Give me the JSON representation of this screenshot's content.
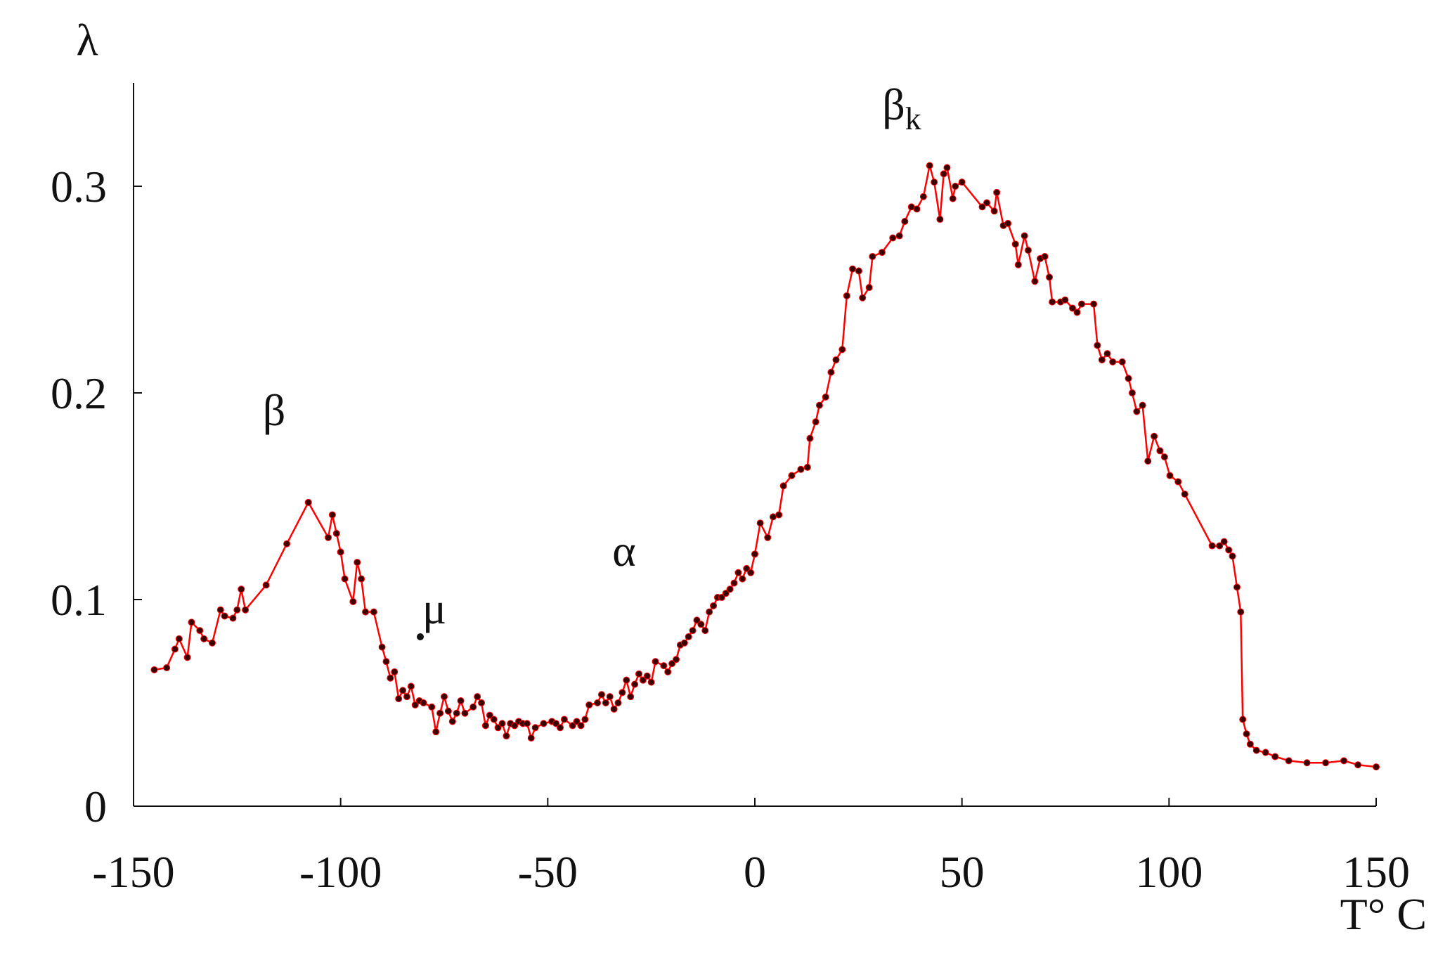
{
  "chart_data": {
    "type": "line",
    "y_label": "λ",
    "x_label": "T° C",
    "annotations": [
      {
        "text": "β"
      },
      {
        "text": "μ"
      },
      {
        "text": "α"
      },
      {
        "text": "β",
        "sub": "k"
      }
    ],
    "color": "#ff0000",
    "marker_color": "#3a0000",
    "xlim": [
      -150,
      150
    ],
    "xticks": [
      -150,
      -100,
      -50,
      0,
      50,
      100,
      150
    ],
    "ylim": [
      0,
      0.35
    ],
    "yticks": [
      0,
      0.1,
      0.2,
      0.3
    ],
    "grid": false,
    "x": [
      -145,
      -142,
      -140,
      -139,
      -137,
      -136,
      -134,
      -133,
      -131,
      -129,
      -128,
      -126,
      -125,
      -124,
      -123,
      -118,
      -113,
      -107.8,
      -103,
      -102,
      -101,
      -100,
      -99,
      -97,
      -96,
      -95,
      -94,
      -92,
      -90,
      -89,
      -88,
      -87,
      -86,
      -85,
      -84,
      -83,
      -82,
      -81,
      -80,
      -78,
      -77,
      -76,
      -75,
      -74,
      -73,
      -72,
      -71,
      -70,
      -68,
      -67,
      -66,
      -65,
      -64,
      -63,
      -62,
      -61,
      -60,
      -59,
      -58,
      -57,
      -56,
      -55,
      -54,
      -53,
      -51,
      -49,
      -48,
      -47,
      -46,
      -44,
      -43,
      -42,
      -41,
      -40,
      -38,
      -37,
      -36,
      -35,
      -34,
      -33,
      -32,
      -31,
      -30,
      -29,
      -28,
      -27,
      -26,
      -25,
      -24,
      -22,
      -21,
      -20,
      -19,
      -18,
      -17,
      -16,
      -15,
      -14,
      -13,
      -12,
      -11,
      -10,
      -9,
      -8,
      -7,
      -6,
      -5,
      -4,
      -3,
      -2,
      -1,
      0,
      1.3,
      3.1,
      4.4,
      5.8,
      6.9,
      8.9,
      11.1,
      12.7,
      13.3,
      14.7,
      15.6,
      17.1,
      18.4,
      19.6,
      21.1,
      22.2,
      23.6,
      25.1,
      26,
      27.6,
      28.4,
      30.7,
      33.3,
      34.9,
      36.2,
      37.8,
      39.1,
      40.7,
      42.2,
      43.3,
      44.7,
      45.6,
      46.4,
      47.8,
      48.4,
      50,
      54.9,
      56,
      57.8,
      58.4,
      60,
      61.1,
      62.9,
      63.6,
      65.1,
      66,
      67.6,
      68.9,
      70,
      71.1,
      71.8,
      73.8,
      74.9,
      76.7,
      77.8,
      78.9,
      81.8,
      82.7,
      83.8,
      85.1,
      86.4,
      88.7,
      90.2,
      91.1,
      92.2,
      93.6,
      94.9,
      96.4,
      97.8,
      98.9,
      100.2,
      102.2,
      103.8,
      110.4,
      112.2,
      113.3,
      114.4,
      115.3,
      116.4,
      117.3,
      117.8,
      118.7,
      119.6,
      121.1,
      123.3,
      125.6,
      128.9,
      133.3,
      137.8,
      142.2,
      145.6,
      150
    ],
    "values": [
      0.066,
      0.067,
      0.076,
      0.081,
      0.072,
      0.089,
      0.085,
      0.081,
      0.079,
      0.095,
      0.092,
      0.091,
      0.095,
      0.105,
      0.095,
      0.107,
      0.127,
      0.147,
      0.13,
      0.141,
      0.132,
      0.123,
      0.11,
      0.099,
      0.118,
      0.11,
      0.094,
      0.094,
      0.077,
      0.07,
      0.062,
      0.065,
      0.052,
      0.056,
      0.053,
      0.058,
      0.049,
      0.051,
      0.05,
      0.048,
      0.036,
      0.045,
      0.053,
      0.046,
      0.041,
      0.045,
      0.051,
      0.045,
      0.048,
      0.053,
      0.05,
      0.039,
      0.044,
      0.042,
      0.038,
      0.04,
      0.034,
      0.04,
      0.039,
      0.041,
      0.04,
      0.04,
      0.033,
      0.038,
      0.04,
      0.041,
      0.04,
      0.038,
      0.042,
      0.039,
      0.041,
      0.039,
      0.042,
      0.049,
      0.05,
      0.054,
      0.05,
      0.053,
      0.047,
      0.05,
      0.055,
      0.061,
      0.053,
      0.059,
      0.064,
      0.061,
      0.063,
      0.06,
      0.07,
      0.068,
      0.065,
      0.069,
      0.071,
      0.078,
      0.079,
      0.082,
      0.085,
      0.09,
      0.088,
      0.085,
      0.094,
      0.097,
      0.101,
      0.101,
      0.103,
      0.105,
      0.108,
      0.113,
      0.11,
      0.115,
      0.113,
      0.122,
      0.137,
      0.13,
      0.14,
      0.141,
      0.155,
      0.16,
      0.163,
      0.164,
      0.178,
      0.186,
      0.194,
      0.198,
      0.21,
      0.216,
      0.221,
      0.247,
      0.26,
      0.259,
      0.246,
      0.251,
      0.266,
      0.268,
      0.275,
      0.276,
      0.283,
      0.29,
      0.289,
      0.295,
      0.31,
      0.302,
      0.284,
      0.306,
      0.309,
      0.294,
      0.3,
      0.302,
      0.29,
      0.292,
      0.288,
      0.297,
      0.281,
      0.282,
      0.272,
      0.262,
      0.276,
      0.269,
      0.254,
      0.265,
      0.266,
      0.256,
      0.244,
      0.244,
      0.245,
      0.241,
      0.239,
      0.243,
      0.243,
      0.223,
      0.216,
      0.219,
      0.215,
      0.215,
      0.207,
      0.2,
      0.191,
      0.194,
      0.167,
      0.179,
      0.172,
      0.169,
      0.16,
      0.157,
      0.151,
      0.126,
      0.126,
      0.128,
      0.124,
      0.121,
      0.106,
      0.094,
      0.042,
      0.035,
      0.03,
      0.027,
      0.026,
      0.024,
      0.022,
      0.021,
      0.021,
      0.022,
      0.02,
      0.019
    ]
  }
}
